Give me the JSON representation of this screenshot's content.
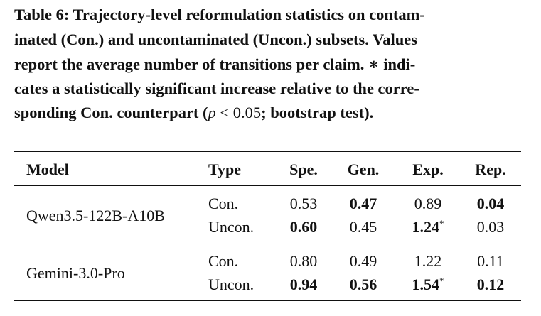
{
  "caption": {
    "lines": [
      "Table 6: Trajectory-level reformulation statistics on contam-",
      "inated (Con.) and uncontaminated (Uncon.) subsets. Values",
      "report the average number of transitions per claim. ∗ indi-",
      "cates a statistically significant increase relative to the corre-"
    ],
    "last": {
      "before": "sponding Con. counterpart (",
      "var": "p",
      "op": "<",
      "num": "0.05",
      "after": "; bootstrap test)."
    }
  },
  "table": {
    "header": [
      "Model",
      "Type",
      "Spe.",
      "Gen.",
      "Exp.",
      "Rep."
    ],
    "groups": [
      {
        "model": "Qwen3.5-122B-A10B",
        "rows": [
          {
            "type": "Con.",
            "cells": [
              {
                "text": "0.53",
                "bold": false
              },
              {
                "text": "0.47",
                "bold": true
              },
              {
                "text": "0.89",
                "bold": false
              },
              {
                "text": "0.04",
                "bold": true
              }
            ]
          },
          {
            "type": "Uncon.",
            "cells": [
              {
                "text": "0.60",
                "bold": true
              },
              {
                "text": "0.45",
                "bold": false
              },
              {
                "text": "1.24",
                "bold": true,
                "sig": "*"
              },
              {
                "text": "0.03",
                "bold": false
              }
            ]
          }
        ]
      },
      {
        "model": "Gemini-3.0-Pro",
        "rows": [
          {
            "type": "Con.",
            "cells": [
              {
                "text": "0.80",
                "bold": false
              },
              {
                "text": "0.49",
                "bold": false
              },
              {
                "text": "1.22",
                "bold": false
              },
              {
                "text": "0.11",
                "bold": false
              }
            ]
          },
          {
            "type": "Uncon.",
            "cells": [
              {
                "text": "0.94",
                "bold": true
              },
              {
                "text": "0.56",
                "bold": true
              },
              {
                "text": "1.54",
                "bold": true,
                "sig": "*"
              },
              {
                "text": "0.12",
                "bold": true
              }
            ]
          }
        ]
      }
    ]
  }
}
